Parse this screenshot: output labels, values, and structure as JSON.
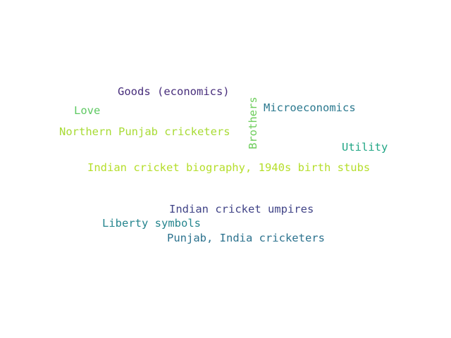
{
  "words": [
    {
      "text": "Goods (economics)",
      "color": "#472d7b"
    },
    {
      "text": "Love",
      "color": "#5ec962"
    },
    {
      "text": "Northern Punjab cricketers",
      "color": "#a8db34"
    },
    {
      "text": "Brothers",
      "color": "#6ccd5a"
    },
    {
      "text": "Microeconomics",
      "color": "#2a788e"
    },
    {
      "text": "Utility",
      "color": "#21a685"
    },
    {
      "text": "Indian cricket biography, 1940s birth stubs",
      "color": "#b5de2b"
    },
    {
      "text": "Indian cricket umpires",
      "color": "#414487"
    },
    {
      "text": "Liberty symbols",
      "color": "#25858e"
    },
    {
      "text": "Punjab, India cricketers",
      "color": "#2c728e"
    }
  ]
}
